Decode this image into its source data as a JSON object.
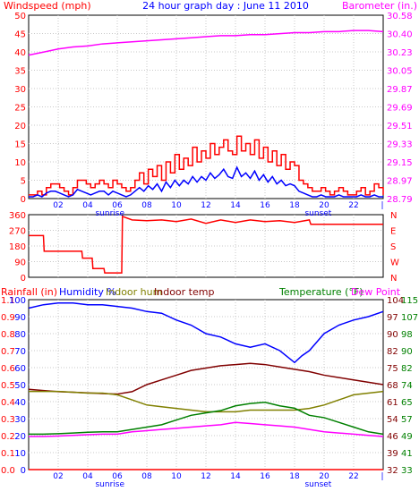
{
  "header": {
    "left_title": "Windspeed (mph)",
    "center_title": "24 hour graph day : June 11 2010",
    "right_title": "Barometer (in.)"
  },
  "bottom_header": {
    "rainfall": "Rainfall (in)",
    "humidity": "Humidity %",
    "indoor_hum": "Indoor hum",
    "indoor_temp": "Indoor temp",
    "temperature": "Temperature (°F)",
    "dew_point": "Dew Point"
  },
  "colors": {
    "windspeed": "#ff0000",
    "gust": "#0000ff",
    "barometer": "#ff00ff",
    "direction": "#ff0000",
    "humidity": "#0000ff",
    "indoor_hum": "#808000",
    "indoor_temp": "#800000",
    "temperature": "#008000",
    "dew_point": "#ff00ff",
    "rain": "#ff0000",
    "axis_left": "#ff0000",
    "title": "#0000ff",
    "baro_axis": "#ff00ff",
    "temp_axis": "#008000",
    "time_axis": "#0000ff"
  },
  "chart_data": [
    {
      "type": "line",
      "name": "wind-barometer",
      "x_ticks": [
        "02",
        "04",
        "06",
        "08",
        "10",
        "12",
        "14",
        "16",
        "18",
        "20",
        "22"
      ],
      "x_sub_labels": [
        "sunrise",
        "sunset"
      ],
      "y_left_ticks": [
        "0",
        "5",
        "10",
        "15",
        "20",
        "25",
        "30",
        "35",
        "40",
        "45",
        "50"
      ],
      "y_right_ticks": [
        "28.79",
        "28.97",
        "29.15",
        "29.33",
        "29.51",
        "29.69",
        "29.87",
        "30.05",
        "30.23",
        "30.40",
        "30.58"
      ],
      "ylim_left": [
        0,
        50
      ],
      "ylim_right": [
        28.79,
        30.58
      ],
      "series": [
        {
          "key": "windspeed",
          "x": [
            0,
            0.3,
            0.6,
            0.9,
            1.2,
            1.5,
            1.8,
            2.1,
            2.4,
            2.7,
            3.0,
            3.3,
            3.6,
            3.9,
            4.2,
            4.5,
            4.8,
            5.1,
            5.4,
            5.7,
            6.0,
            6.3,
            6.6,
            6.9,
            7.2,
            7.5,
            7.8,
            8.1,
            8.4,
            8.7,
            9.0,
            9.3,
            9.6,
            9.9,
            10.2,
            10.5,
            10.8,
            11.1,
            11.4,
            11.7,
            12.0,
            12.3,
            12.6,
            12.9,
            13.2,
            13.5,
            13.8,
            14.1,
            14.4,
            14.7,
            15.0,
            15.3,
            15.6,
            15.9,
            16.2,
            16.5,
            16.8,
            17.1,
            17.4,
            17.7,
            18.0,
            18.3,
            18.6,
            18.9,
            19.2,
            19.5,
            19.8,
            20.1,
            20.4,
            20.7,
            21.0,
            21.3,
            21.6,
            21.9,
            22.2,
            22.5,
            22.8,
            23.1,
            23.4,
            23.7,
            24.0
          ],
          "values": [
            1,
            1,
            2,
            1,
            3,
            4,
            4,
            3,
            2,
            1,
            3,
            5,
            5,
            4,
            3,
            4,
            5,
            4,
            3,
            5,
            4,
            3,
            2,
            3,
            5,
            7,
            4,
            8,
            6,
            9,
            5,
            10,
            7,
            12,
            8,
            11,
            9,
            14,
            10,
            13,
            11,
            15,
            12,
            14,
            16,
            13,
            12,
            17,
            13,
            15,
            12,
            16,
            11,
            14,
            10,
            13,
            9,
            12,
            8,
            10,
            9,
            5,
            4,
            3,
            2,
            2,
            3,
            2,
            1,
            2,
            3,
            2,
            1,
            1,
            2,
            3,
            1,
            2,
            4,
            3,
            1
          ]
        },
        {
          "key": "gust",
          "x": [
            0,
            0.3,
            0.6,
            0.9,
            1.2,
            1.5,
            1.8,
            2.1,
            2.4,
            2.7,
            3.0,
            3.3,
            3.6,
            3.9,
            4.2,
            4.5,
            4.8,
            5.1,
            5.4,
            5.7,
            6.0,
            6.3,
            6.6,
            6.9,
            7.2,
            7.5,
            7.8,
            8.1,
            8.4,
            8.7,
            9.0,
            9.3,
            9.6,
            9.9,
            10.2,
            10.5,
            10.8,
            11.1,
            11.4,
            11.7,
            12.0,
            12.3,
            12.6,
            12.9,
            13.2,
            13.5,
            13.8,
            14.1,
            14.4,
            14.7,
            15.0,
            15.3,
            15.6,
            15.9,
            16.2,
            16.5,
            16.8,
            17.1,
            17.4,
            17.7,
            18.0,
            18.3,
            18.6,
            18.9,
            19.2,
            19.5,
            19.8,
            20.1,
            20.4,
            20.7,
            21.0,
            21.3,
            21.6,
            21.9,
            22.2,
            22.5,
            22.8,
            23.1,
            23.4,
            23.7,
            24.0
          ],
          "values": [
            0.5,
            0.5,
            1,
            0.5,
            1.5,
            2,
            2,
            1.5,
            1,
            0.5,
            1,
            2.5,
            2,
            1.5,
            1,
            1.5,
            2,
            2,
            1,
            2,
            1.5,
            1,
            0.5,
            1,
            2,
            3,
            2,
            3.5,
            2.5,
            4,
            2,
            4.5,
            3,
            5,
            3.5,
            5,
            4,
            6,
            4.5,
            6,
            5,
            7,
            5.5,
            6.5,
            8,
            6,
            5.5,
            8.5,
            6,
            7,
            5.5,
            7.5,
            5,
            6.5,
            4.5,
            6,
            4,
            5,
            3.5,
            4,
            3.5,
            2,
            1.5,
            1,
            0.5,
            0.5,
            1,
            0.5,
            0.5,
            0.5,
            1,
            0.5,
            0.5,
            0.5,
            0.5,
            1,
            0.5,
            0.5,
            1,
            0.5,
            0.5
          ]
        },
        {
          "key": "barometer",
          "x": [
            0,
            1,
            2,
            3,
            4,
            5,
            6,
            7,
            8,
            9,
            10,
            11,
            12,
            13,
            14,
            15,
            16,
            17,
            18,
            19,
            20,
            21,
            22,
            23,
            24
          ],
          "values": [
            30.19,
            30.22,
            30.25,
            30.27,
            30.28,
            30.3,
            30.31,
            30.32,
            30.33,
            30.34,
            30.35,
            30.36,
            30.37,
            30.38,
            30.38,
            30.39,
            30.39,
            30.4,
            30.41,
            30.41,
            30.42,
            30.42,
            30.43,
            30.43,
            30.42
          ]
        }
      ]
    },
    {
      "type": "line",
      "name": "wind-direction",
      "y_left_ticks": [
        "0",
        "90",
        "180",
        "270",
        "360"
      ],
      "y_right_ticks": [
        "N",
        "W",
        "S",
        "E",
        "N"
      ],
      "ylim": [
        0,
        360
      ],
      "series": [
        {
          "key": "direction",
          "x": [
            0,
            1.0,
            1.05,
            3.6,
            3.65,
            4.3,
            4.35,
            5.1,
            5.15,
            6.3,
            6.35,
            7.0,
            8.0,
            9.0,
            10.0,
            11.0,
            12.0,
            13.0,
            14.0,
            15.0,
            16.0,
            17.0,
            18.0,
            19.0,
            19.1,
            24.0
          ],
          "values": [
            240,
            240,
            150,
            150,
            110,
            110,
            50,
            50,
            25,
            25,
            350,
            330,
            325,
            330,
            320,
            335,
            310,
            330,
            315,
            330,
            320,
            325,
            315,
            330,
            305,
            305
          ]
        }
      ]
    },
    {
      "type": "line",
      "name": "humidity-temperature",
      "y_left_ticks": [
        "0.0",
        "0.1",
        "0.2",
        "0.3",
        "0.4",
        "0.5",
        "0.6",
        "0.7",
        "0.8",
        "0.9",
        "1.1"
      ],
      "y_left_ticks_2": [
        "0",
        "10",
        "20",
        "30",
        "40",
        "50",
        "60",
        "70",
        "80",
        "90",
        "100"
      ],
      "y_right_ticks": [
        "32",
        "39",
        "46",
        "54",
        "61",
        "68",
        "75",
        "82",
        "90",
        "97",
        "104"
      ],
      "y_right_ticks_2": [
        "33",
        "41",
        "49",
        "57",
        "65",
        "74",
        "82",
        "90",
        "98",
        "107",
        "115"
      ],
      "ylim_humidity": [
        0,
        100
      ],
      "ylim_temperature": [
        32,
        104
      ],
      "series": [
        {
          "key": "humidity",
          "x": [
            0,
            1,
            2,
            3,
            4,
            5,
            6,
            7,
            8,
            9,
            10,
            11,
            12,
            13,
            14,
            15,
            16,
            17,
            18,
            18.5,
            19,
            20,
            21,
            22,
            23,
            24
          ],
          "values": [
            95,
            97,
            98,
            98,
            97,
            97,
            96,
            95,
            93,
            92,
            88,
            85,
            80,
            78,
            74,
            72,
            74,
            70,
            63,
            67,
            70,
            80,
            85,
            88,
            90,
            93
          ]
        },
        {
          "key": "indoor_temp",
          "x": [
            0,
            1,
            2,
            3,
            4,
            5,
            6,
            7,
            8,
            9,
            10,
            11,
            12,
            13,
            14,
            15,
            16,
            17,
            18,
            19,
            20,
            21,
            22,
            23,
            24
          ],
          "values": [
            66,
            65.5,
            65,
            64.8,
            64.5,
            64.2,
            64,
            65,
            68,
            70,
            72,
            74,
            75,
            76,
            76.5,
            77,
            76.5,
            75.5,
            74.5,
            73.5,
            72,
            71,
            70,
            69,
            68
          ]
        },
        {
          "key": "indoor_hum",
          "x": [
            0,
            1,
            2,
            3,
            4,
            5,
            6,
            7,
            8,
            9,
            10,
            11,
            12,
            13,
            14,
            15,
            16,
            17,
            18,
            19,
            20,
            21,
            22,
            23,
            24
          ],
          "values": [
            46,
            46,
            46,
            45.5,
            45,
            45,
            44,
            41,
            38,
            37,
            36,
            35,
            34,
            34,
            34,
            35,
            35,
            35,
            35,
            36,
            38,
            41,
            44,
            45,
            46
          ]
        },
        {
          "key": "temperature",
          "x": [
            0,
            1,
            2,
            3,
            4,
            5,
            6,
            7,
            8,
            9,
            10,
            11,
            12,
            13,
            14,
            15,
            16,
            17,
            18,
            19,
            20,
            21,
            22,
            23,
            24
          ],
          "values": [
            47,
            47,
            47.2,
            47.5,
            47.8,
            48,
            48,
            49,
            50,
            51,
            53,
            55,
            56,
            57,
            59,
            60,
            60.5,
            59,
            58,
            55,
            54,
            52,
            50,
            48,
            47
          ]
        },
        {
          "key": "dew_point",
          "x": [
            0,
            1,
            2,
            3,
            4,
            5,
            6,
            7,
            8,
            9,
            10,
            11,
            12,
            13,
            14,
            15,
            16,
            17,
            18,
            19,
            20,
            21,
            22,
            23,
            24
          ],
          "values": [
            46,
            46,
            46.2,
            46.5,
            46.8,
            47,
            47,
            48,
            48.5,
            49,
            49.5,
            50,
            50.5,
            51,
            52,
            51.5,
            51,
            50.5,
            50,
            49,
            48,
            47.5,
            47,
            46.5,
            46
          ]
        },
        {
          "key": "rain",
          "x": [
            0,
            24
          ],
          "values": [
            0,
            0
          ]
        }
      ]
    }
  ]
}
